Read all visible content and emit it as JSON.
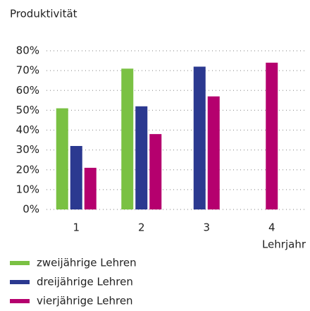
{
  "chart_data": {
    "type": "bar",
    "y_label": "Produktivität",
    "x_label": "Lehrjahr",
    "categories": [
      "1",
      "2",
      "3",
      "4"
    ],
    "series": [
      {
        "name": "zweijährige Lehren",
        "color": "#7ac143",
        "values": [
          51,
          71,
          null,
          null
        ]
      },
      {
        "name": "dreijährige Lehren",
        "color": "#2b3990",
        "values": [
          32,
          52,
          72,
          null
        ]
      },
      {
        "name": "vierjährige Lehren",
        "color": "#b5006e",
        "values": [
          21,
          38,
          57,
          74
        ]
      }
    ],
    "ylim": [
      0,
      80
    ],
    "yticks": [
      {
        "value": 0,
        "label": "0%"
      },
      {
        "value": 10,
        "label": "10%"
      },
      {
        "value": 20,
        "label": "20%"
      },
      {
        "value": 30,
        "label": "30%"
      },
      {
        "value": 40,
        "label": "40%"
      },
      {
        "value": 50,
        "label": "50%"
      },
      {
        "value": 60,
        "label": "60%"
      },
      {
        "value": 70,
        "label": "70%"
      },
      {
        "value": 80,
        "label": "80%"
      }
    ],
    "grid": true,
    "legend": "bottom-left"
  }
}
